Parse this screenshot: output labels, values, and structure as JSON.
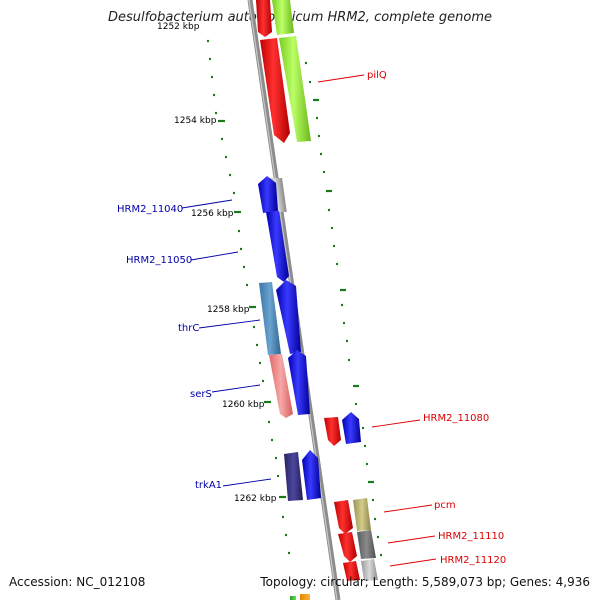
{
  "header": {
    "title": "Desulfobacterium autotrophicum HRM2, complete genome"
  },
  "footer": {
    "accession": "Accession: NC_012108",
    "stats": "Topology: circular; Length: 5,589,073 bp; Genes: 4,936"
  },
  "map": {
    "scale_ticks": [
      "1252 kbp",
      "1254 kbp",
      "1256 kbp",
      "1258 kbp",
      "1260 kbp",
      "1262 kbp"
    ],
    "gene_labels_left": [
      "HRM2_11040",
      "HRM2_11050",
      "thrC",
      "serS",
      "trkA1"
    ],
    "gene_labels_right": [
      "pilQ",
      "HRM2_11080",
      "pcm",
      "HRM2_11110",
      "HRM2_11120"
    ],
    "colors": {
      "forward_label": "#0000aa",
      "reverse_label": "#dd0000",
      "blue_gene": "#0000ff",
      "red_gene": "#ff0000",
      "lime_gene": "#99ff33",
      "scale_dash": "#1a7a1a",
      "backbone": "#8c8c8c"
    }
  }
}
